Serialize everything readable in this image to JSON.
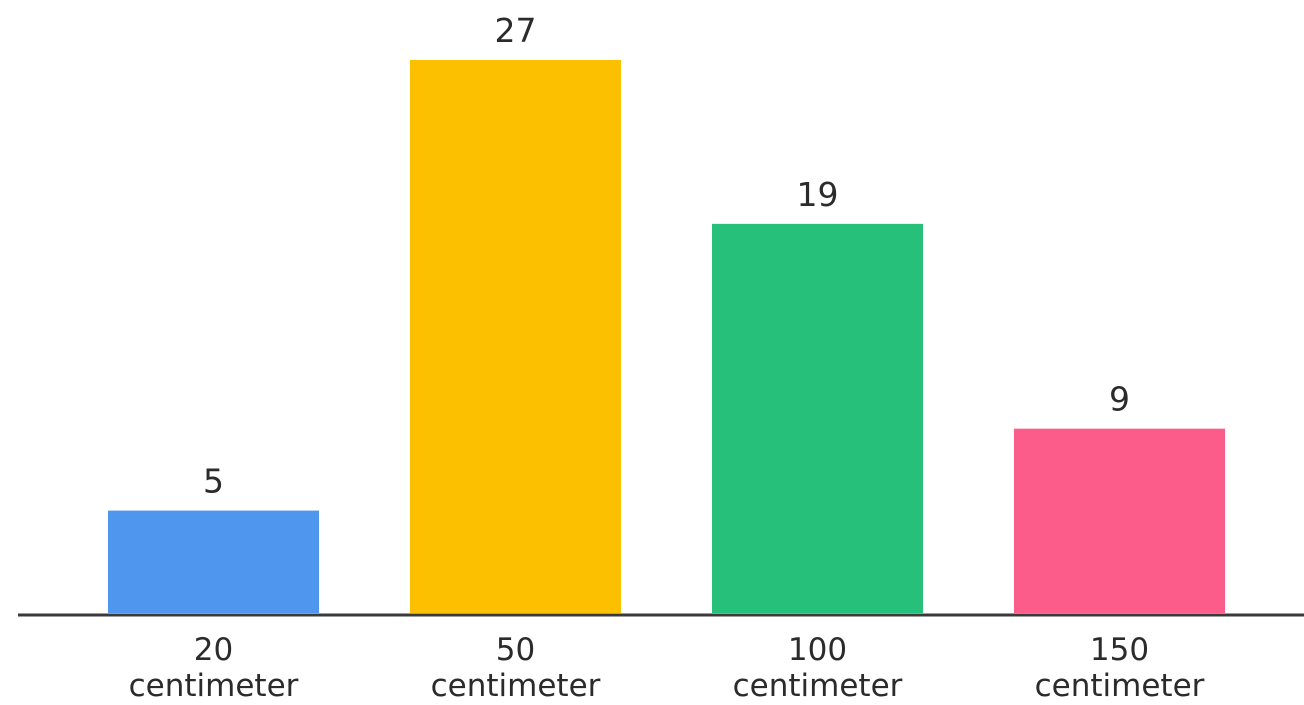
{
  "chart_data": {
    "type": "bar",
    "categories": [
      "20 centimeter",
      "50 centimeter",
      "100 centimeter",
      "150 centimeter"
    ],
    "category_lines": [
      [
        "20",
        "centimeter"
      ],
      [
        "50",
        "centimeter"
      ],
      [
        "100",
        "centimeter"
      ],
      [
        "150",
        "centimeter"
      ]
    ],
    "values": [
      5,
      27,
      19,
      9
    ],
    "colors": [
      "#4f96ee",
      "#fcc000",
      "#26c07a",
      "#fb5c8a"
    ],
    "axis_color": "#3a3a3a",
    "title": "",
    "xlabel": "",
    "ylabel": "",
    "ylim": [
      0,
      27
    ],
    "grid": false,
    "data_labels": true
  }
}
